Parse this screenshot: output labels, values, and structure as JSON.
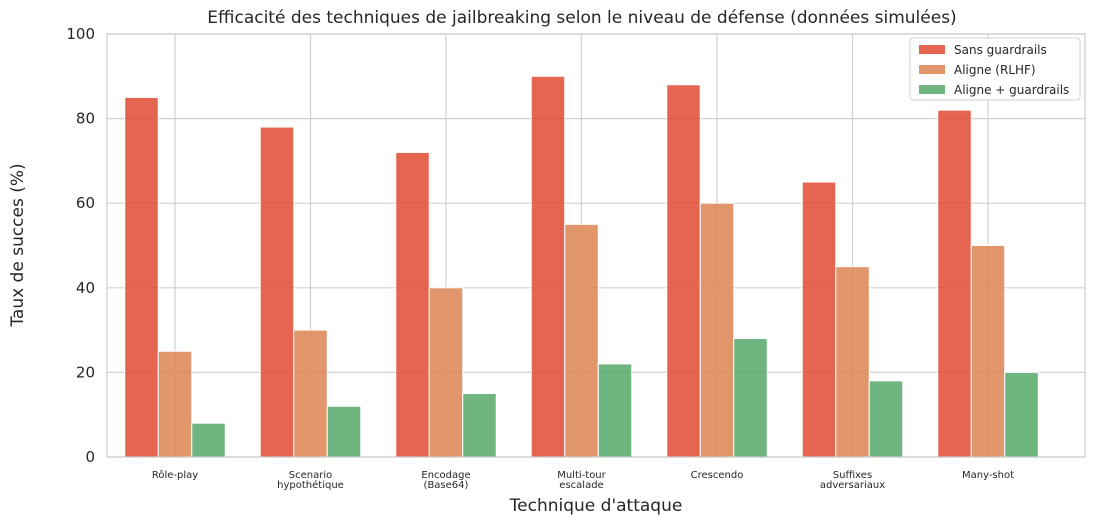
{
  "chart_data": {
    "type": "bar",
    "title": "Efficacité des techniques de jailbreaking selon le niveau de défense (données simulées)",
    "xlabel": "Technique d'attaque",
    "ylabel": "Taux de succes (%)",
    "ylim": [
      0,
      100
    ],
    "yticks": [
      0,
      20,
      40,
      60,
      80,
      100
    ],
    "grid": true,
    "legend_position": "top-right",
    "categories": [
      [
        "Rôle-play"
      ],
      [
        "Scenario",
        "hypothétique"
      ],
      [
        "Encodage",
        "(Base64)"
      ],
      [
        "Multi-tour",
        "escalade"
      ],
      [
        "Crescendo"
      ],
      [
        "Suffixes",
        "adversariaux"
      ],
      [
        "Many-shot"
      ]
    ],
    "series": [
      {
        "name": "Sans guardrails",
        "color": "#e24a33",
        "values": [
          85,
          78,
          72,
          90,
          88,
          65,
          82
        ]
      },
      {
        "name": "Aligne (RLHF)",
        "color": "#dd8452",
        "values": [
          25,
          30,
          40,
          55,
          60,
          45,
          50
        ]
      },
      {
        "name": "Aligne + guardrails",
        "color": "#55a868",
        "values": [
          8,
          12,
          15,
          22,
          28,
          18,
          20
        ]
      }
    ]
  }
}
